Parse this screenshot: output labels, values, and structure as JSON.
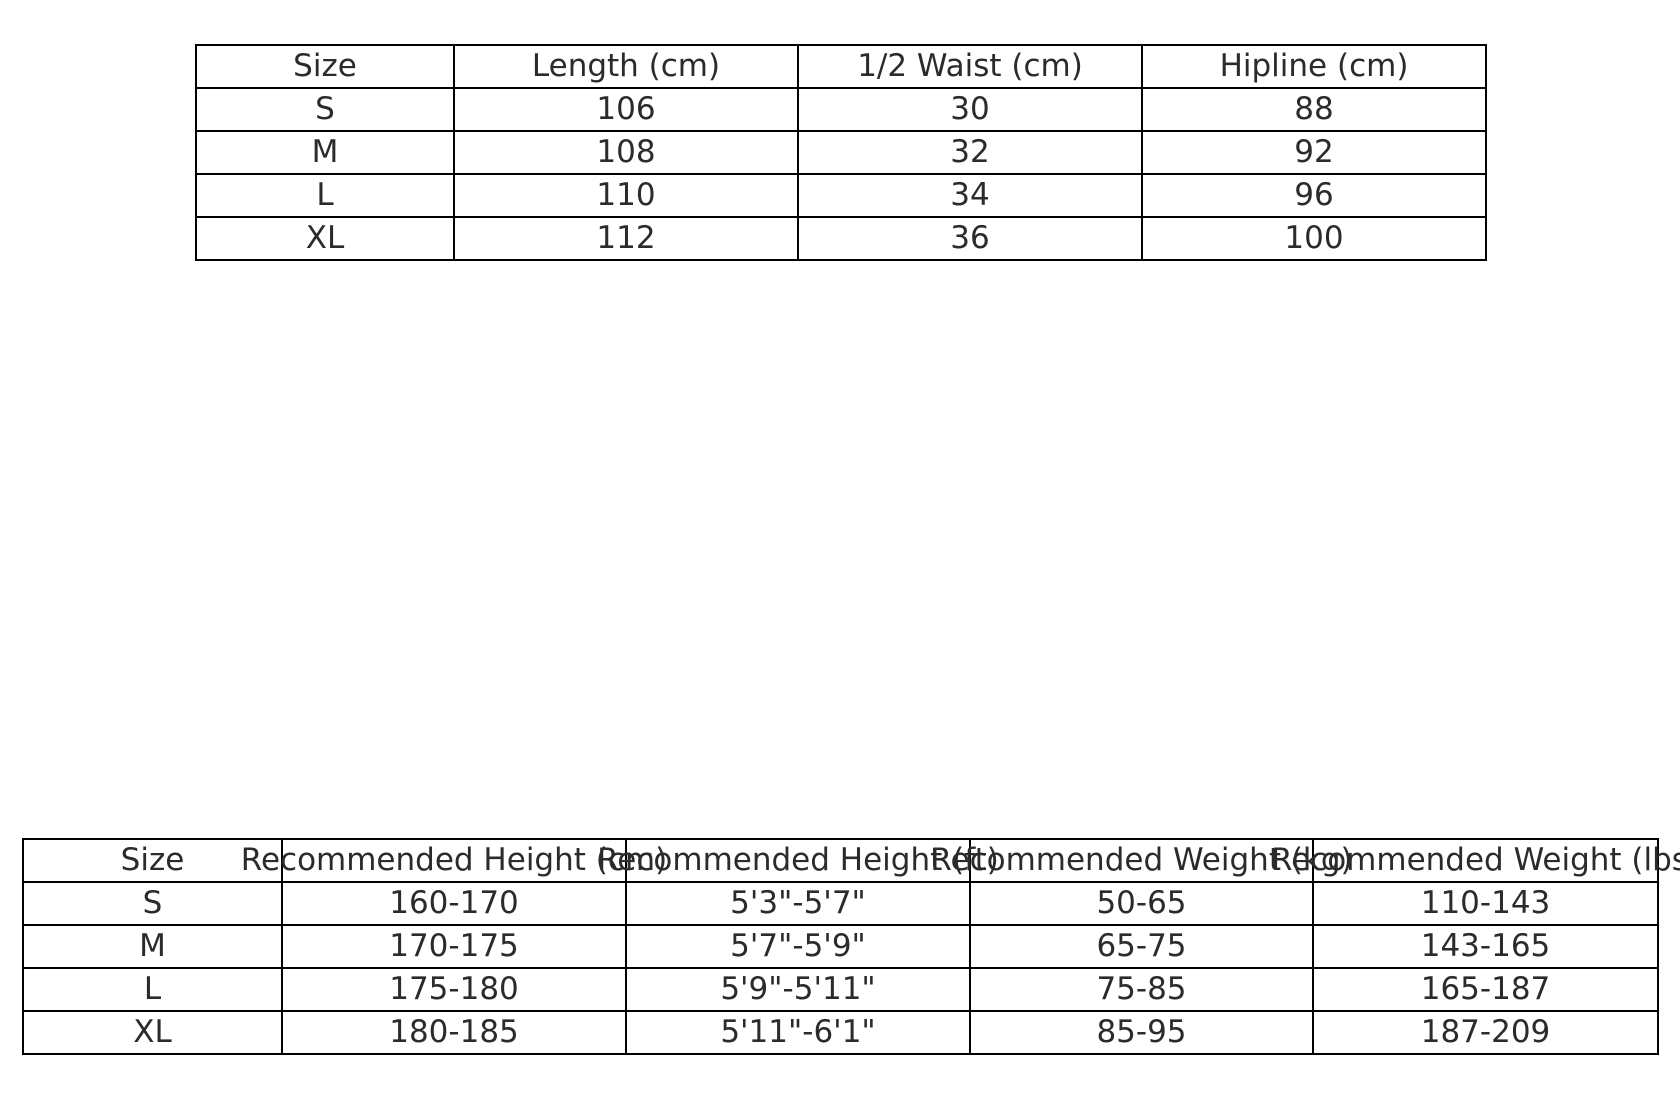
{
  "measurements_table": {
    "headers": [
      "Size",
      "Length (cm)",
      "1/2 Waist (cm)",
      "Hipline (cm)"
    ],
    "rows": [
      [
        "S",
        "106",
        "30",
        "88"
      ],
      [
        "M",
        "108",
        "32",
        "92"
      ],
      [
        "L",
        "110",
        "34",
        "96"
      ],
      [
        "XL",
        "112",
        "36",
        "100"
      ]
    ]
  },
  "recommendation_table": {
    "headers": [
      "Size",
      "Recommended Height (cm)",
      "Recommended Height (ft)",
      "Recommended Weight (kg)",
      "Recommended Weight (lbs)"
    ],
    "rows": [
      [
        "S",
        "160-170",
        "5'3\"-5'7\"",
        "50-65",
        "110-143"
      ],
      [
        "M",
        "170-175",
        "5'7\"-5'9\"",
        "65-75",
        "143-165"
      ],
      [
        "L",
        "175-180",
        "5'9\"-5'11\"",
        "75-85",
        "165-187"
      ],
      [
        "XL",
        "180-185",
        "5'11\"-6'1\"",
        "85-95",
        "187-209"
      ]
    ]
  }
}
